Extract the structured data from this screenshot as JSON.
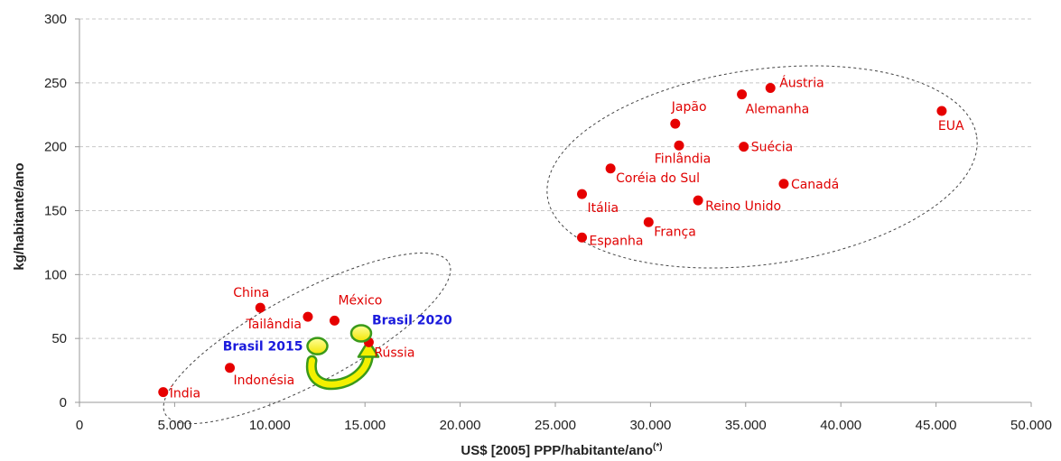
{
  "chart_data": {
    "type": "scatter",
    "xlabel": "US$ [2005] PPP/habitante/ano",
    "xlabel_sup": "(*)",
    "ylabel": "kg/habitante/ano",
    "xlim": [
      0,
      50000
    ],
    "ylim": [
      0,
      300
    ],
    "x_ticks": [
      0,
      5000,
      10000,
      15000,
      20000,
      25000,
      30000,
      35000,
      40000,
      45000,
      50000
    ],
    "x_tick_labels": [
      "0",
      "5.000",
      "10.000",
      "15.000",
      "20.000",
      "25.000",
      "30.000",
      "35.000",
      "40.000",
      "45.000",
      "50.000"
    ],
    "y_ticks": [
      0,
      50,
      100,
      150,
      200,
      250,
      300
    ],
    "y_tick_labels": [
      "0",
      "50",
      "100",
      "150",
      "200",
      "250",
      "300"
    ],
    "grid": "horizontal-dashed",
    "point_color": "#e60000",
    "label_color": "#e00000",
    "highlight_color": "#1a1adc",
    "points": [
      {
        "name": "Índia",
        "x": 4400,
        "y": 8
      },
      {
        "name": "Indonésia",
        "x": 7900,
        "y": 27
      },
      {
        "name": "China",
        "x": 9500,
        "y": 74
      },
      {
        "name": "Tailândia",
        "x": 12000,
        "y": 67
      },
      {
        "name": "México",
        "x": 13400,
        "y": 64
      },
      {
        "name": "Rússia",
        "x": 15200,
        "y": 47
      },
      {
        "name": "Espanha",
        "x": 26400,
        "y": 129
      },
      {
        "name": "Itália",
        "x": 26400,
        "y": 163
      },
      {
        "name": "Coréia do Sul",
        "x": 27900,
        "y": 183
      },
      {
        "name": "França",
        "x": 29900,
        "y": 141
      },
      {
        "name": "Japão",
        "x": 31300,
        "y": 218
      },
      {
        "name": "Finlândia",
        "x": 31500,
        "y": 201
      },
      {
        "name": "Reino Unido",
        "x": 32500,
        "y": 158
      },
      {
        "name": "Alemanha",
        "x": 34800,
        "y": 241
      },
      {
        "name": "Suécia",
        "x": 34900,
        "y": 200
      },
      {
        "name": "Áustria",
        "x": 36300,
        "y": 246
      },
      {
        "name": "Canadá",
        "x": 37000,
        "y": 171
      },
      {
        "name": "EUA",
        "x": 45300,
        "y": 228
      }
    ],
    "highlights": [
      {
        "name": "Brasil 2015",
        "x": 12500,
        "y": 44
      },
      {
        "name": "Brasil 2020",
        "x": 14800,
        "y": 54
      }
    ],
    "clusters": [
      "developing",
      "developed"
    ]
  }
}
